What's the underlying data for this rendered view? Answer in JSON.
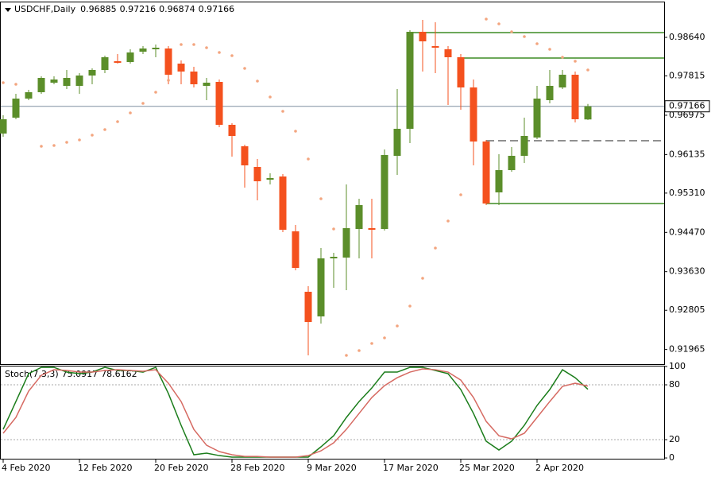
{
  "chart_data": [
    {
      "type": "candlestick",
      "symbol": "USDCHF,Daily",
      "categories": [
        "4 Feb 2020",
        null,
        null,
        null,
        null,
        null,
        "12 Feb 2020",
        null,
        null,
        null,
        null,
        null,
        "20 Feb 2020",
        null,
        null,
        null,
        null,
        null,
        "28 Feb 2020",
        null,
        null,
        null,
        null,
        null,
        "9 Mar 2020",
        null,
        null,
        null,
        null,
        null,
        "17 Mar 2020",
        null,
        null,
        null,
        null,
        null,
        "25 Mar 2020",
        null,
        null,
        null,
        null,
        null,
        "2 Apr 2020",
        null,
        null,
        null,
        null
      ],
      "open": [
        0.96583,
        0.96923,
        0.97331,
        0.97467,
        0.97671,
        0.97603,
        0.97603,
        0.97824,
        0.97943,
        0.9813,
        0.98113,
        0.98334,
        0.98385,
        0.98402,
        0.98079,
        0.97909,
        0.97603,
        0.97688,
        0.9677,
        0.96311,
        0.95869,
        0.95597,
        0.95665,
        0.94492,
        0.932,
        0.92673,
        0.93914,
        0.93931,
        0.94543,
        0.9456,
        0.94543,
        0.96107,
        0.96685,
        0.98759,
        0.98453,
        0.98385,
        0.98215,
        0.97569,
        0.96413,
        0.95325,
        0.95801,
        0.96107,
        0.96498,
        0.97297,
        0.97569,
        0.97841,
        0.96885
      ],
      "high": [
        0.96974,
        0.97433,
        0.97518,
        0.97807,
        0.97807,
        0.97943,
        0.97875,
        0.97977,
        0.98249,
        0.98283,
        0.98385,
        0.98453,
        0.98487,
        0.98453,
        0.98147,
        0.98011,
        0.97773,
        0.97739,
        0.96804,
        0.96345,
        0.96039,
        0.95733,
        0.95716,
        0.94628,
        0.93319,
        0.94135,
        0.94033,
        0.95495,
        0.95189,
        0.95189,
        0.96243,
        0.97535,
        0.98793,
        0.99014,
        0.98963,
        0.98453,
        0.98283,
        0.97739,
        0.96447,
        0.96141,
        0.96294,
        0.96923,
        0.97603,
        0.97943,
        0.97943,
        0.97909,
        0.97216
      ],
      "low": [
        0.96515,
        0.96889,
        0.97297,
        0.97433,
        0.97637,
        0.97535,
        0.97433,
        0.97637,
        0.97875,
        0.98079,
        0.98079,
        0.98283,
        0.98215,
        0.97637,
        0.97637,
        0.97569,
        0.97297,
        0.96719,
        0.9609,
        0.95427,
        0.95155,
        0.95495,
        0.94475,
        0.93659,
        0.9184,
        0.9252,
        0.93285,
        0.93234,
        0.93914,
        0.93914,
        0.94509,
        0.95699,
        0.96379,
        0.97909,
        0.97875,
        0.97195,
        0.97093,
        0.95903,
        0.95053,
        0.95053,
        0.95767,
        0.95954,
        0.96464,
        0.97229,
        0.97535,
        0.96821,
        0.96874
      ],
      "close": [
        0.96889,
        0.97331,
        0.97467,
        0.97773,
        0.97739,
        0.97773,
        0.97824,
        0.97943,
        0.98215,
        0.98096,
        0.98317,
        0.98402,
        0.98419,
        0.97841,
        0.97909,
        0.97637,
        0.97671,
        0.9677,
        0.96532,
        0.95903,
        0.95563,
        0.95631,
        0.94526,
        0.9371,
        0.92554,
        0.93914,
        0.93948,
        0.9456,
        0.95053,
        0.94526,
        0.96124,
        0.96685,
        0.98759,
        0.98555,
        0.98419,
        0.98215,
        0.97569,
        0.96413,
        0.95087,
        0.95801,
        0.96107,
        0.96532,
        0.97331,
        0.97603,
        0.97841,
        0.96889,
        0.97166
      ],
      "up_color": "#5b8e2a",
      "down_color": "#f4511e",
      "overlays": [
        {
          "color": "#f3a57f",
          "values": [
            0.97671,
            0.97637,
            null,
            0.96311,
            0.96328,
            0.96396,
            0.96447,
            0.96549,
            0.96668,
            0.96838,
            0.97025,
            0.97229,
            0.97467,
            0.97722,
            0.98487,
            0.98487,
            0.98419,
            0.98317,
            0.98249,
            0.97977,
            0.97705,
            0.97365,
            0.97059,
            0.96634,
            0.96039,
            0.95189,
            0.94543,
            0.9184,
            0.91942,
            0.92095,
            0.92214,
            0.92469,
            0.92894,
            0.93489,
            0.94135,
            0.94713,
            0.95274,
            null,
            0.99031,
            0.98929,
            0.98759,
            0.98657,
            0.98504,
            0.98385,
            0.98215,
            0.9813,
            0.97943
          ]
        }
      ],
      "levels": [
        {
          "value": 0.98742,
          "start": 32,
          "color": "#3d8b24",
          "dashed": false
        },
        {
          "value": 0.98198,
          "start": 36,
          "color": "#3d8b24",
          "dashed": false
        },
        {
          "value": 0.95087,
          "start": 38,
          "color": "#3d8b24",
          "dashed": false
        },
        {
          "value": 0.9643,
          "start": 38,
          "color": "#222222",
          "dashed": true
        }
      ],
      "ylim": [
        0.91653,
        0.99405
      ],
      "yticks": [
        {
          "value": 0.9864,
          "label": "0.98640"
        },
        0.97815,
        0.96975,
        0.96135,
        {
          "value": 0.9531,
          "label": "0.95310"
        },
        {
          "value": 0.9447,
          "label": "0.94470"
        },
        {
          "value": 0.9363,
          "label": "0.93630"
        },
        0.92805,
        0.91965
      ],
      "grid": false
    },
    {
      "type": "line",
      "title": "Stoch(7,3,3)",
      "series": [
        {
          "color": "#1b7d1b",
          "values": [
            31.3,
            61.7,
            92.2,
            99.1,
            99.1,
            93.9,
            92.2,
            93.9,
            99.1,
            95.7,
            95.7,
            93.9,
            99.1,
            70.4,
            35.7,
            3.5,
            5.2,
            2.6,
            0.9,
            0.9,
            0.9,
            0.9,
            0.9,
            0.9,
            0.9,
            12.2,
            24.3,
            44.3,
            61.7,
            76.5,
            93.9,
            93.9,
            99.1,
            99.1,
            95.7,
            92.2,
            74.8,
            48.7,
            18.3,
            8.7,
            18.3,
            35.7,
            57.4,
            74.8,
            96.5,
            87.8,
            75.0917
          ]
        },
        {
          "color": "#d66a62",
          "values": [
            27.0,
            44.3,
            73.0,
            90.4,
            96.5,
            95.7,
            93.9,
            93.9,
            95.7,
            96.5,
            95.7,
            94.8,
            96.5,
            81.7,
            61.7,
            31.3,
            13.9,
            7.0,
            3.5,
            1.7,
            1.7,
            0.9,
            0.9,
            0.9,
            2.6,
            7.8,
            16.5,
            31.3,
            48.7,
            66.1,
            79.1,
            87.8,
            93.9,
            97.4,
            96.5,
            93.9,
            85.2,
            66.1,
            40.0,
            24.3,
            20.9,
            27.0,
            44.3,
            61.7,
            78.3,
            81.7,
            78.6162
          ]
        }
      ],
      "ylim": [
        -1.7,
        100.9
      ],
      "yticks": [
        100,
        80,
        20,
        0
      ],
      "levels": [
        80,
        20
      ]
    }
  ]
}
